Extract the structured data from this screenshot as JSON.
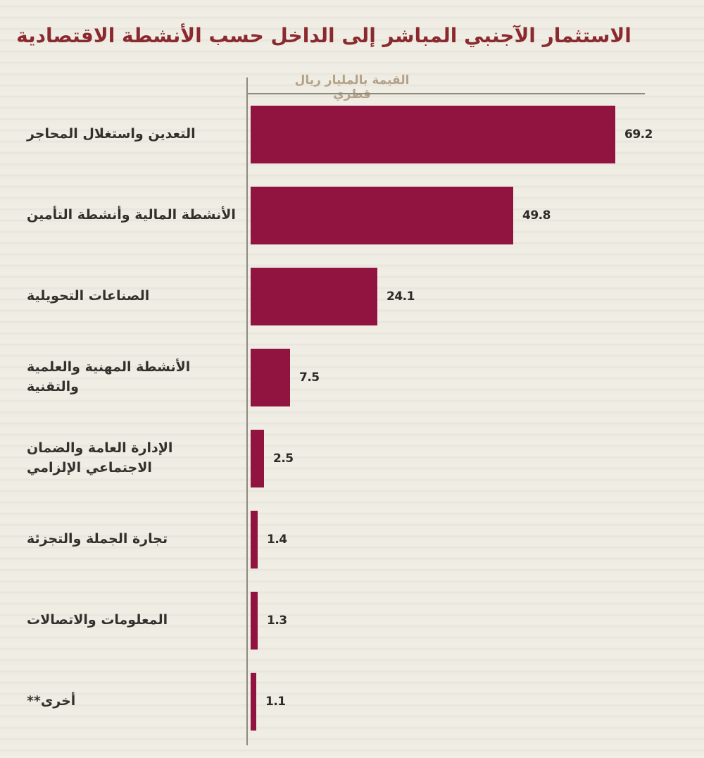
{
  "page": {
    "title": "الاستثمار الآجنبي المباشر إلى الداخل حسب الأنشطة الاقتصادية"
  },
  "chart_data": {
    "type": "bar",
    "orientation": "horizontal",
    "title": "الاستثمار الآجنبي المباشر إلى الداخل حسب الأنشطة الاقتصادية",
    "axis_title": "القيمة بالمليار ريال قطري",
    "categories": [
      "التعدين واستغلال المحاجر",
      "الأنشطة المالية وأنشطة التأمين",
      "الصناعات التحويلية",
      "الأنشطة المهنية والعلمية والتقنية",
      "الإدارة العامة والضمان الاجتماعي الإلزامي",
      "تجارة الجملة والتجزئة",
      "المعلومات والاتصالات",
      "أخرى**"
    ],
    "values": [
      69.2,
      49.8,
      24.1,
      7.5,
      2.5,
      1.4,
      1.3,
      1.1
    ],
    "value_labels": [
      "69.2",
      "49.8",
      "24.1",
      "7.5",
      "2.5",
      "1.4",
      "1.3",
      "1.1"
    ],
    "xlim": [
      0,
      75
    ],
    "grid": false,
    "legend": "none"
  },
  "colors": {
    "background": "#EDEAE2",
    "bar": "#911440",
    "title_text": "#8A2A2E",
    "axis_title_text": "#B3A287",
    "category_label_text": "#33302B",
    "value_text": "#2E2B27",
    "axis_line": "#8D8B7E"
  }
}
